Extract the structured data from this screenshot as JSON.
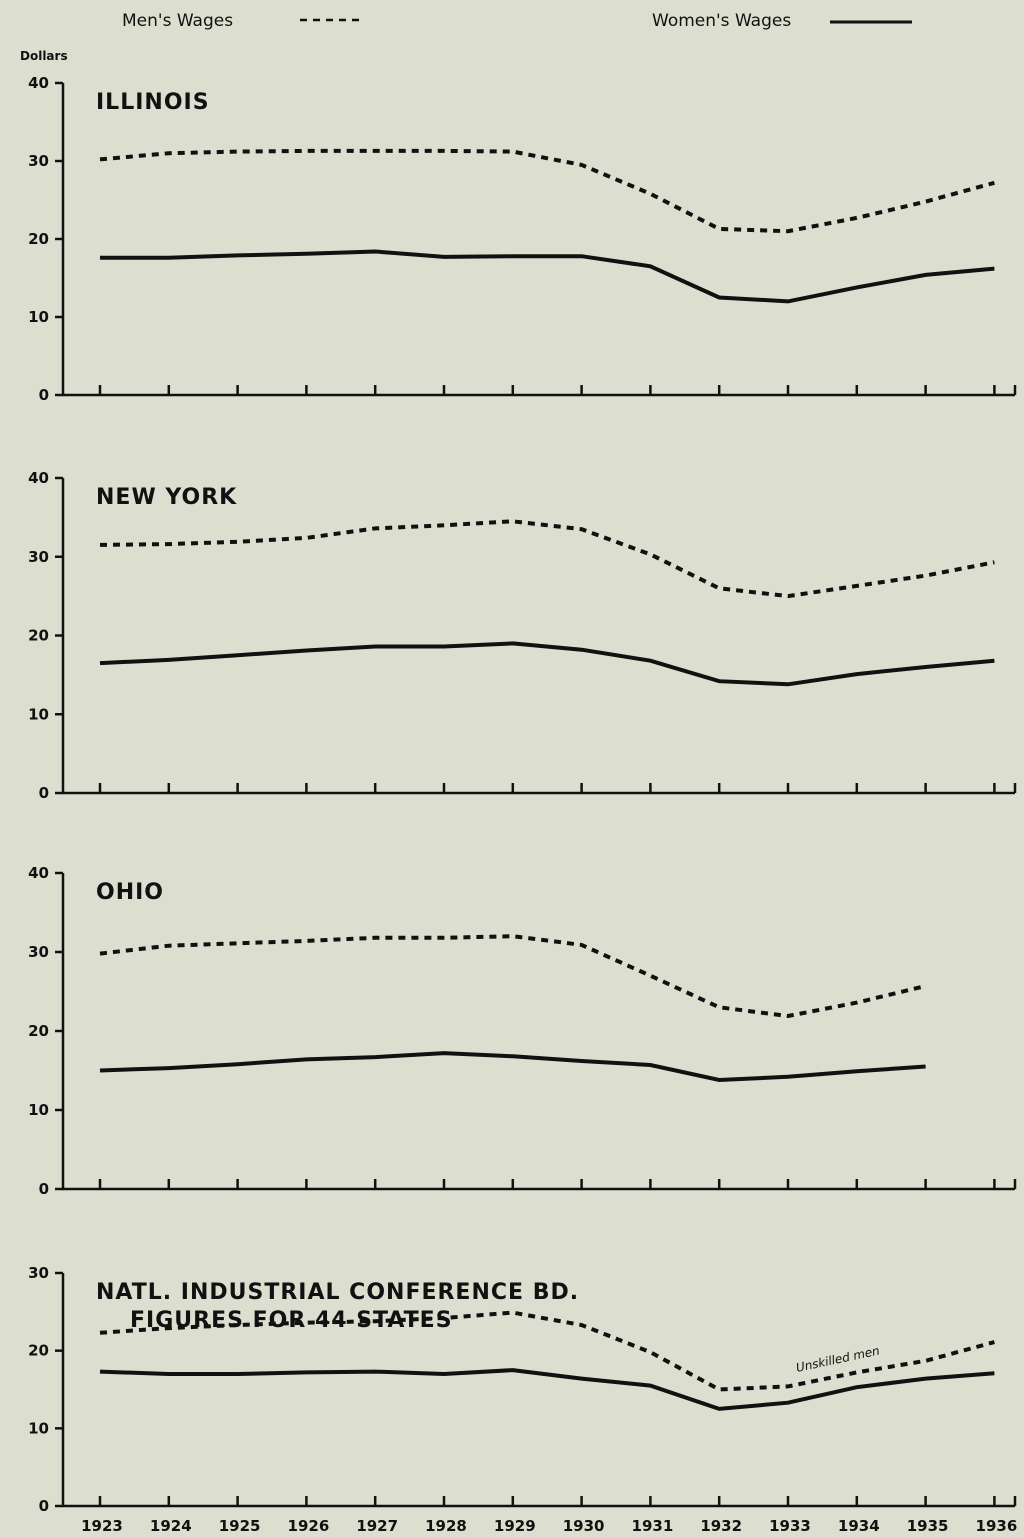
{
  "legend": {
    "men": "Men's Wages",
    "women": "Women's Wages"
  },
  "unit": "Dollars",
  "x_categories": [
    "1923",
    "1924",
    "1925",
    "1926",
    "1927",
    "1928",
    "1929",
    "1930",
    "1931",
    "1932",
    "1933",
    "1934",
    "1935",
    "1936"
  ],
  "chart_data": [
    {
      "type": "line",
      "title": "ILLINOIS",
      "ylim": [
        0,
        40
      ],
      "yticks": [
        0,
        10,
        20,
        30,
        40
      ],
      "x": [
        1923,
        1924,
        1925,
        1926,
        1927,
        1928,
        1929,
        1930,
        1931,
        1932,
        1933,
        1934,
        1935,
        1936
      ],
      "series": [
        {
          "name": "Men's Wages",
          "values": [
            30.2,
            31.0,
            31.2,
            31.3,
            31.3,
            31.3,
            31.2,
            29.5,
            25.8,
            21.3,
            21.0,
            22.7,
            24.8,
            27.2
          ]
        },
        {
          "name": "Women's Wages",
          "values": [
            17.6,
            17.6,
            17.9,
            18.1,
            18.4,
            17.7,
            17.8,
            17.8,
            16.5,
            12.5,
            12.0,
            13.8,
            15.4,
            16.2
          ]
        }
      ]
    },
    {
      "type": "line",
      "title": "NEW YORK",
      "ylim": [
        0,
        40
      ],
      "yticks": [
        0,
        10,
        20,
        30,
        40
      ],
      "x": [
        1923,
        1924,
        1925,
        1926,
        1927,
        1928,
        1929,
        1930,
        1931,
        1932,
        1933,
        1934,
        1935,
        1936
      ],
      "series": [
        {
          "name": "Men's Wages",
          "values": [
            31.5,
            31.6,
            31.9,
            32.4,
            33.6,
            34.0,
            34.5,
            33.5,
            30.3,
            26.0,
            25.0,
            26.3,
            27.6,
            29.3
          ]
        },
        {
          "name": "Women's Wages",
          "values": [
            16.5,
            16.9,
            17.5,
            18.1,
            18.6,
            18.6,
            19.0,
            18.2,
            16.8,
            14.2,
            13.8,
            15.1,
            16.0,
            16.8
          ]
        }
      ]
    },
    {
      "type": "line",
      "title": "OHIO",
      "ylim": [
        0,
        40
      ],
      "yticks": [
        0,
        10,
        20,
        30,
        40
      ],
      "x": [
        1923,
        1924,
        1925,
        1926,
        1927,
        1928,
        1929,
        1930,
        1931,
        1932,
        1933,
        1934,
        1935
      ],
      "series": [
        {
          "name": "Men's Wages",
          "values": [
            29.8,
            30.8,
            31.1,
            31.4,
            31.8,
            31.8,
            32.0,
            30.9,
            27.0,
            23.0,
            21.9,
            23.6,
            25.7
          ]
        },
        {
          "name": "Women's Wages",
          "values": [
            15.0,
            15.3,
            15.8,
            16.4,
            16.7,
            17.2,
            16.8,
            16.2,
            15.7,
            13.8,
            14.2,
            14.9,
            15.5
          ]
        }
      ]
    },
    {
      "type": "line",
      "title": "NATL. INDUSTRIAL CONFERENCE BD.",
      "subtitle": "FIGURES FOR 44 STATES",
      "ylim": [
        0,
        30
      ],
      "yticks": [
        0,
        10,
        20,
        30
      ],
      "x": [
        1923,
        1924,
        1925,
        1926,
        1927,
        1928,
        1929,
        1930,
        1931,
        1932,
        1933,
        1934,
        1935,
        1936
      ],
      "annotation": "Unskilled men",
      "series": [
        {
          "name": "Men's Wages",
          "values": [
            22.3,
            22.9,
            23.3,
            23.6,
            23.8,
            24.2,
            24.9,
            23.3,
            19.8,
            15.0,
            15.4,
            17.2,
            18.7,
            21.1
          ]
        },
        {
          "name": "Women's Wages",
          "values": [
            17.3,
            17.0,
            17.0,
            17.2,
            17.3,
            17.0,
            17.5,
            16.4,
            15.5,
            12.5,
            13.3,
            15.3,
            16.4,
            17.1
          ]
        }
      ]
    }
  ]
}
